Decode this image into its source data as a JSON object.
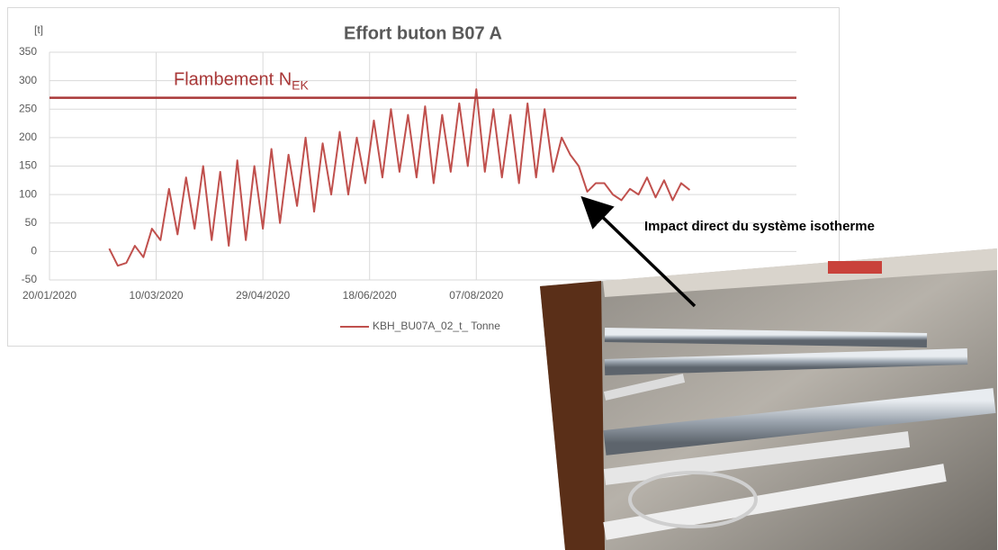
{
  "chart_data": {
    "type": "line",
    "title": "Effort buton B07 A",
    "y_unit": "[t]",
    "x": [
      "17/02/2020",
      "21/02/2020",
      "25/02/2020",
      "29/02/2020",
      "04/03/2020",
      "08/03/2020",
      "12/03/2020",
      "16/03/2020",
      "20/03/2020",
      "24/03/2020",
      "28/03/2020",
      "01/04/2020",
      "05/04/2020",
      "09/04/2020",
      "13/04/2020",
      "17/04/2020",
      "21/04/2020",
      "25/04/2020",
      "29/04/2020",
      "03/05/2020",
      "07/05/2020",
      "11/05/2020",
      "15/05/2020",
      "19/05/2020",
      "23/05/2020",
      "27/05/2020",
      "31/05/2020",
      "04/06/2020",
      "08/06/2020",
      "12/06/2020",
      "16/06/2020",
      "20/06/2020",
      "24/06/2020",
      "28/06/2020",
      "02/07/2020",
      "06/07/2020",
      "10/07/2020",
      "14/07/2020",
      "18/07/2020",
      "22/07/2020",
      "26/07/2020",
      "30/07/2020",
      "03/08/2020",
      "07/08/2020",
      "11/08/2020",
      "15/08/2020",
      "19/08/2020",
      "23/08/2020",
      "27/08/2020",
      "31/08/2020",
      "04/09/2020",
      "08/09/2020",
      "12/09/2020",
      "16/09/2020",
      "20/09/2020",
      "24/09/2020",
      "28/09/2020",
      "02/10/2020",
      "06/10/2020",
      "10/10/2020",
      "14/10/2020",
      "18/10/2020",
      "22/10/2020",
      "26/10/2020",
      "30/10/2020",
      "03/11/2020",
      "07/11/2020",
      "11/11/2020",
      "15/11/2020"
    ],
    "series": [
      {
        "name": "KBH_BU07A_02_t_ Tonne",
        "color": "#c0504d",
        "values": [
          5,
          -25,
          -20,
          10,
          -10,
          40,
          20,
          110,
          30,
          130,
          40,
          150,
          20,
          140,
          10,
          160,
          20,
          150,
          40,
          180,
          50,
          170,
          80,
          200,
          70,
          190,
          100,
          210,
          100,
          200,
          120,
          230,
          130,
          250,
          140,
          240,
          130,
          255,
          120,
          240,
          140,
          260,
          150,
          285,
          140,
          250,
          130,
          240,
          120,
          260,
          130,
          250,
          140,
          200,
          170,
          150,
          105,
          120,
          120,
          100,
          90,
          110,
          100,
          130,
          95,
          125,
          90,
          120,
          108
        ]
      }
    ],
    "xlim": [
      "20/01/2020",
      "04/01/2021"
    ],
    "xticks": [
      "20/01/2020",
      "10/03/2020",
      "29/04/2020",
      "18/06/2020",
      "07/08/2020"
    ],
    "ylim": [
      -50,
      350
    ],
    "yticks": [
      -50,
      0,
      50,
      100,
      150,
      200,
      250,
      300,
      350
    ],
    "grid": true,
    "reference_line": {
      "value": 270,
      "label": "Flambement N",
      "label_sub": "EK",
      "color": "#a93838"
    },
    "annotation": "Impact direct du système isotherme"
  }
}
